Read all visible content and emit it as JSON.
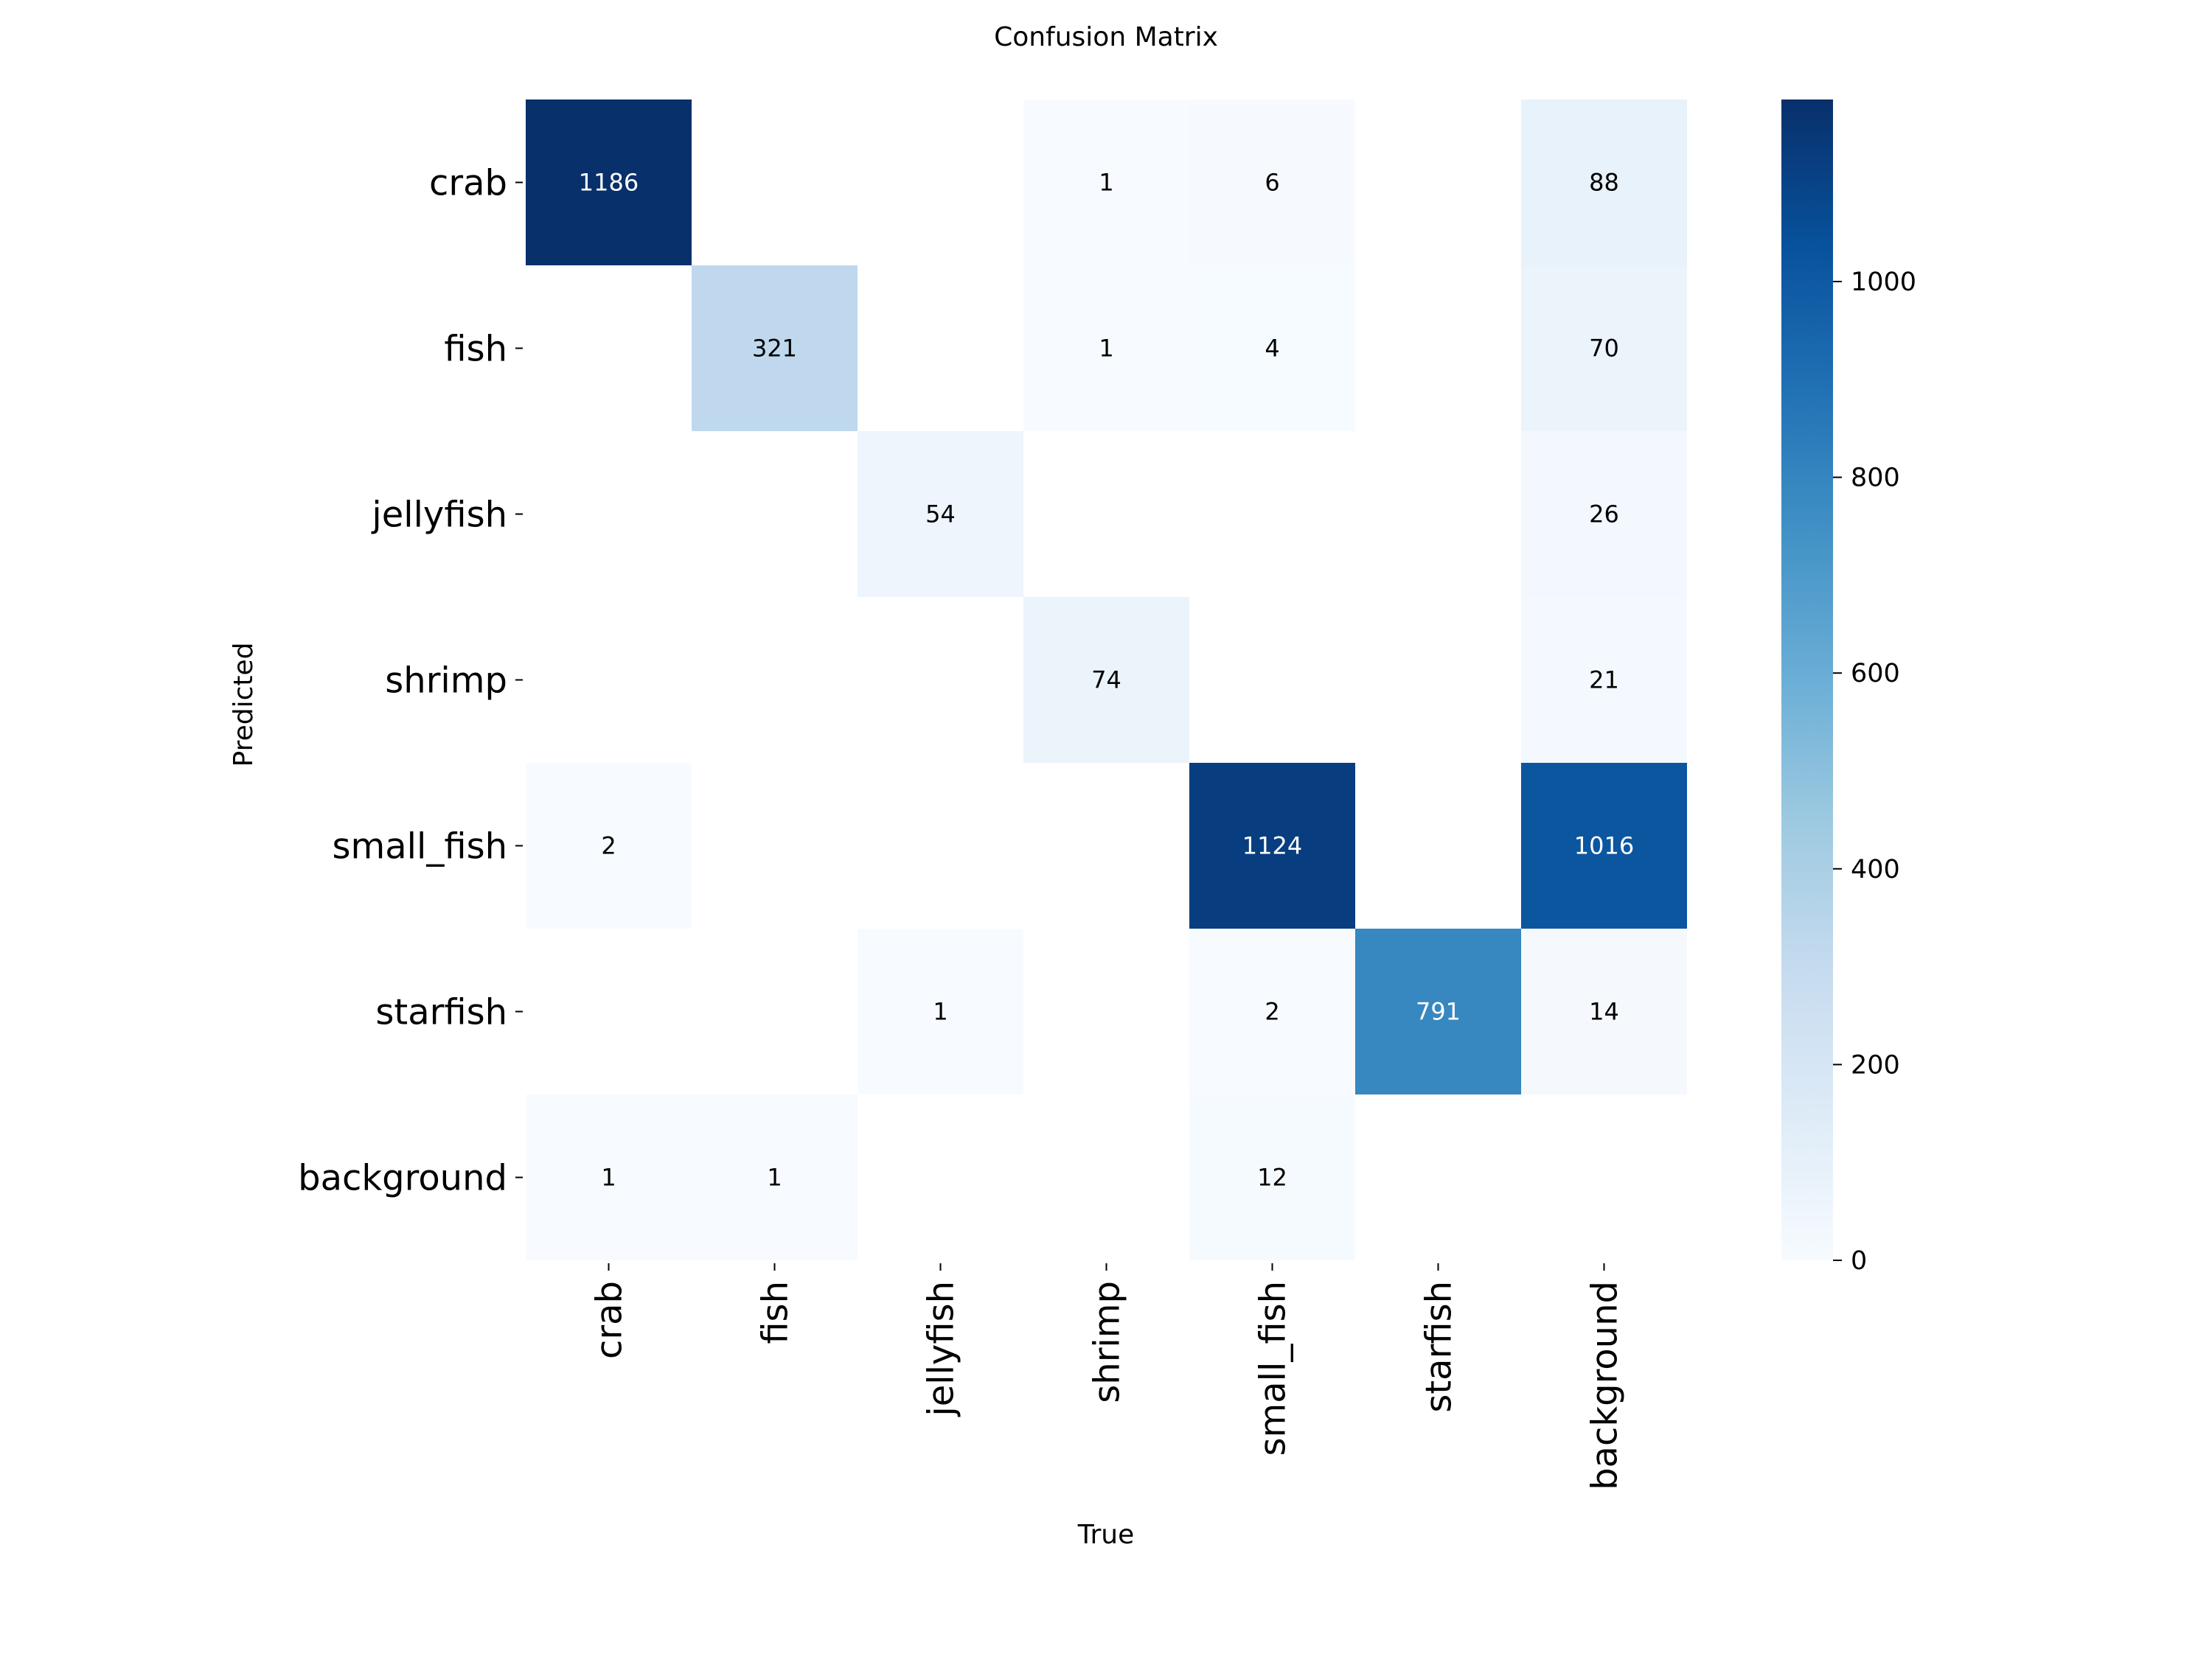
{
  "chart_data": {
    "type": "heatmap",
    "title": "Confusion Matrix",
    "xlabel": "True",
    "ylabel": "Predicted",
    "x_categories": [
      "crab",
      "fish",
      "jellyfish",
      "shrimp",
      "small_fish",
      "starfish",
      "background"
    ],
    "y_categories": [
      "crab",
      "fish",
      "jellyfish",
      "shrimp",
      "small_fish",
      "starfish",
      "background"
    ],
    "values": [
      [
        1186,
        0,
        0,
        1,
        6,
        0,
        88
      ],
      [
        0,
        321,
        0,
        1,
        4,
        0,
        70
      ],
      [
        0,
        0,
        54,
        0,
        0,
        0,
        26
      ],
      [
        0,
        0,
        0,
        74,
        0,
        0,
        21
      ],
      [
        2,
        0,
        0,
        0,
        1124,
        0,
        1016
      ],
      [
        0,
        0,
        1,
        0,
        2,
        791,
        14
      ],
      [
        1,
        1,
        0,
        0,
        12,
        0,
        0
      ]
    ],
    "zero_cells_annotated": false,
    "colormap": "Blues",
    "colorbar": {
      "range": [
        0,
        1186
      ],
      "ticks": [
        0,
        200,
        400,
        600,
        800,
        1000
      ]
    }
  }
}
